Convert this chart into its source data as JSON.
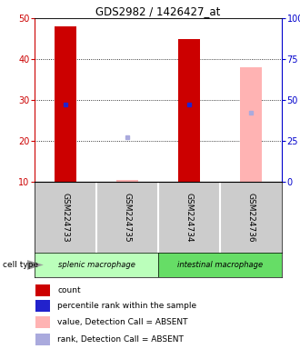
{
  "title": "GDS2982 / 1426427_at",
  "samples": [
    "GSM224733",
    "GSM224735",
    "GSM224734",
    "GSM224736"
  ],
  "bar_values": [
    48,
    10.5,
    45,
    38
  ],
  "bar_colors": [
    "#cc0000",
    "#ffb3b3",
    "#cc0000",
    "#ffb3b3"
  ],
  "rank_values": [
    29,
    21,
    29,
    27
  ],
  "rank_colors": [
    "#2222cc",
    "#aaaadd",
    "#2222cc",
    "#aaaadd"
  ],
  "ylim_left": [
    10,
    50
  ],
  "ylim_right": [
    0,
    100
  ],
  "yticks_left": [
    10,
    20,
    30,
    40,
    50
  ],
  "yticks_right": [
    0,
    25,
    50,
    75,
    100
  ],
  "ytick_labels_right": [
    "0",
    "25",
    "50",
    "75",
    "100%"
  ],
  "cell_types": [
    "splenic macrophage",
    "intestinal macrophage"
  ],
  "cell_bg_light": "#bbffbb",
  "cell_bg_dark": "#66dd66",
  "sample_bg": "#cccccc",
  "bar_width": 0.35,
  "background_color": "#ffffff",
  "left_tick_color": "#cc0000",
  "right_tick_color": "#0000cc",
  "legend_items": [
    {
      "color": "#cc0000",
      "label": "count"
    },
    {
      "color": "#2222cc",
      "label": "percentile rank within the sample"
    },
    {
      "color": "#ffb3b3",
      "label": "value, Detection Call = ABSENT"
    },
    {
      "color": "#aaaadd",
      "label": "rank, Detection Call = ABSENT"
    }
  ]
}
